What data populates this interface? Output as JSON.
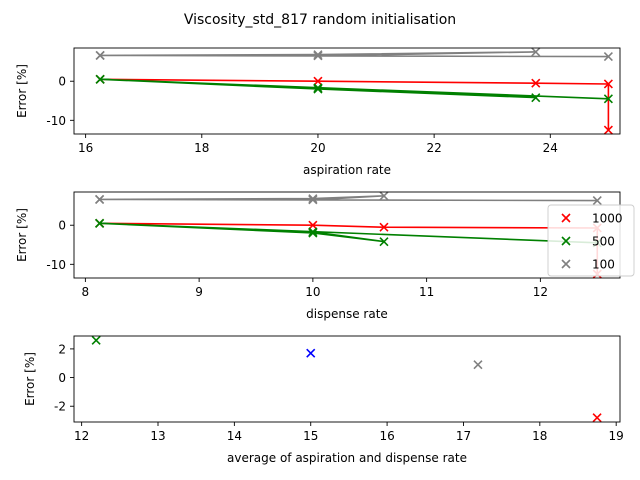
{
  "figure": {
    "title": "Viscosity_std_817 random initialisation"
  },
  "colors": {
    "1000": "#ff0000",
    "500": "#008000",
    "100": "#808080",
    "extra": "#0000ff"
  },
  "legend": {
    "placement": "right",
    "entries": [
      "1000",
      "500",
      "100"
    ]
  },
  "chart_data": [
    {
      "type": "line",
      "xlabel": "aspiration rate",
      "ylabel": "Error [%]",
      "xlim": [
        15.8,
        25.2
      ],
      "ylim": [
        -13.5,
        8.5
      ],
      "xticks": [
        16,
        18,
        20,
        22,
        24
      ],
      "yticks": [
        -10,
        0
      ],
      "series": [
        {
          "name": "1000",
          "color": "#ff0000",
          "x": [
            16.25,
            20,
            23.75,
            25,
            25
          ],
          "y": [
            0.5,
            0,
            -0.5,
            -0.7,
            -12.5
          ]
        },
        {
          "name": "500",
          "color": "#008000",
          "x": [
            16.25,
            20,
            23.75,
            20,
            16.25,
            25
          ],
          "y": [
            0.5,
            -1.7,
            -4.2,
            -2,
            0.5,
            -4.5
          ]
        },
        {
          "name": "100",
          "color": "#808080",
          "x": [
            16.25,
            20,
            23.75,
            20,
            16.25,
            25
          ],
          "y": [
            6.6,
            6.8,
            7.5,
            6.5,
            6.6,
            6.3
          ]
        }
      ]
    },
    {
      "type": "line",
      "xlabel": "dispense rate",
      "ylabel": "Error [%]",
      "xlim": [
        7.9,
        12.7
      ],
      "ylim": [
        -13.5,
        8.5
      ],
      "xticks": [
        8,
        9,
        10,
        11,
        12
      ],
      "yticks": [
        -10,
        0
      ],
      "series": [
        {
          "name": "1000",
          "color": "#ff0000",
          "x": [
            8.125,
            10,
            10.625,
            12.5,
            12.5
          ],
          "y": [
            0.5,
            0,
            -0.5,
            -0.7,
            -12.5
          ]
        },
        {
          "name": "500",
          "color": "#008000",
          "x": [
            8.125,
            10,
            10.625,
            10,
            8.125,
            12.5
          ],
          "y": [
            0.5,
            -1.7,
            -4.2,
            -2,
            0.5,
            -4.5
          ]
        },
        {
          "name": "100",
          "color": "#808080",
          "x": [
            8.125,
            10,
            10.625,
            10,
            8.125,
            12.5
          ],
          "y": [
            6.6,
            6.8,
            7.5,
            6.5,
            6.6,
            6.3
          ]
        }
      ]
    },
    {
      "type": "scatter",
      "xlabel": "average of aspiration and dispense rate",
      "ylabel": "Error [%]",
      "xlim": [
        11.9,
        19.05
      ],
      "ylim": [
        -3.1,
        2.9
      ],
      "xticks": [
        12,
        13,
        14,
        15,
        16,
        17,
        18,
        19
      ],
      "yticks": [
        -2,
        0,
        2
      ],
      "points": [
        {
          "x": 12.19,
          "y": 2.6,
          "color": "#008000"
        },
        {
          "x": 15.0,
          "y": 1.7,
          "color": "#0000ff"
        },
        {
          "x": 17.19,
          "y": 0.9,
          "color": "#808080"
        },
        {
          "x": 18.75,
          "y": -2.8,
          "color": "#ff0000"
        }
      ]
    }
  ]
}
